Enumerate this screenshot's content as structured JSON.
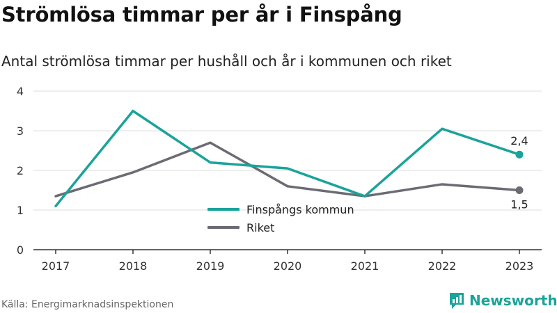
{
  "header": {
    "title": "Strömlösa timmar per år i Finspång",
    "subtitle": "Antal strömlösa timmar per hushåll och år i kommunen och riket"
  },
  "footer": {
    "source": "Källa: Energimarknadsinspektionen",
    "brand": "Newsworthy"
  },
  "colors": {
    "finspang": "#1aa39a",
    "riket": "#6c6b73",
    "grid": "#dddddd",
    "axis": "#333333",
    "brand": "#1aa39a"
  },
  "chart_data": {
    "type": "line",
    "title": "Strömlösa timmar per år i Finspång",
    "subtitle": "Antal strömlösa timmar per hushåll och år i kommunen och riket",
    "categories": [
      "2017",
      "2018",
      "2019",
      "2020",
      "2021",
      "2022",
      "2023"
    ],
    "ylim": [
      0,
      4
    ],
    "yticks": [
      "0",
      "1",
      "2",
      "3",
      "4"
    ],
    "grid": true,
    "legend_position": "bottom-center",
    "series": [
      {
        "name": "Finspångs kommun",
        "color": "#1aa39a",
        "values": [
          1.1,
          3.5,
          2.2,
          2.05,
          1.35,
          3.05,
          2.4
        ],
        "end_label": "2,4"
      },
      {
        "name": "Riket",
        "color": "#6c6b73",
        "values": [
          1.35,
          1.95,
          2.7,
          1.6,
          1.35,
          1.65,
          1.5
        ],
        "end_label": "1,5"
      }
    ]
  }
}
